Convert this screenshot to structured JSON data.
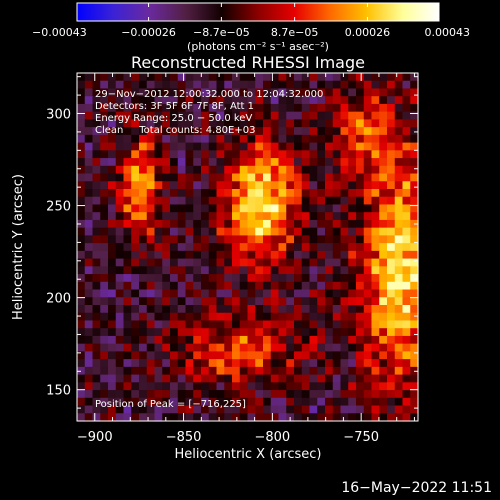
{
  "chart_data": {
    "type": "heatmap",
    "title": "Reconstructed RHESSI Image",
    "xlabel": "Heliocentric X (arcsec)",
    "ylabel": "Heliocentric Y (arcsec)",
    "xlim": [
      -910,
      -718
    ],
    "ylim": [
      133,
      322
    ],
    "x_ticks": [
      -900,
      -850,
      -800,
      -750
    ],
    "x_tick_labels": [
      "−900",
      "−850",
      "−800",
      "−750"
    ],
    "y_ticks": [
      150,
      200,
      250,
      300
    ],
    "y_tick_labels": [
      "150",
      "200",
      "250",
      "300"
    ],
    "colorbar": {
      "min": -0.00043,
      "max": 0.00043,
      "ticks": [
        -0.00043,
        -0.00026,
        -8.7e-05,
        8.7e-05,
        0.00026,
        0.00043
      ],
      "tick_labels": [
        "−0.00043",
        "−0.00026",
        "−8.7e−05",
        "8.7e−05",
        "0.00026",
        "0.00043"
      ],
      "unit_label": "(photons cm⁻² s⁻¹ asec⁻²)"
    },
    "annotations": [
      "29−Nov−2012 12:00:32.000 to 12:04:32.000",
      "Detectors: 3F 5F 6F 7F 8F, Att 1",
      "Energy Range: 25.0 − 50.0 keV",
      "Clean     Total counts: 4.80E+03"
    ],
    "peak_text": "Position of Peak = [−716,225]",
    "peak": [
      -716,
      225
    ],
    "sources": [
      {
        "x": -874,
        "y": 260,
        "sx": 8,
        "sy": 20,
        "amp": 0.00036
      },
      {
        "x": -806,
        "y": 252,
        "sx": 15,
        "sy": 22,
        "amp": 0.00043
      },
      {
        "x": -728,
        "y": 215,
        "sx": 16,
        "sy": 45,
        "amp": 0.00043
      },
      {
        "x": -818,
        "y": 172,
        "sx": 24,
        "sy": 14,
        "amp": 0.00025
      },
      {
        "x": -750,
        "y": 290,
        "sx": 12,
        "sy": 16,
        "amp": 0.00022
      }
    ],
    "colormap": [
      "#0000ff",
      "#3b22d6",
      "#6a2a9e",
      "#521f44",
      "#120000",
      "#8c0000",
      "#e60000",
      "#ff6a00",
      "#ffc000",
      "#ffff99",
      "#ffffff"
    ]
  },
  "footer": {
    "timestamp": "16−May−2022 11:51"
  }
}
